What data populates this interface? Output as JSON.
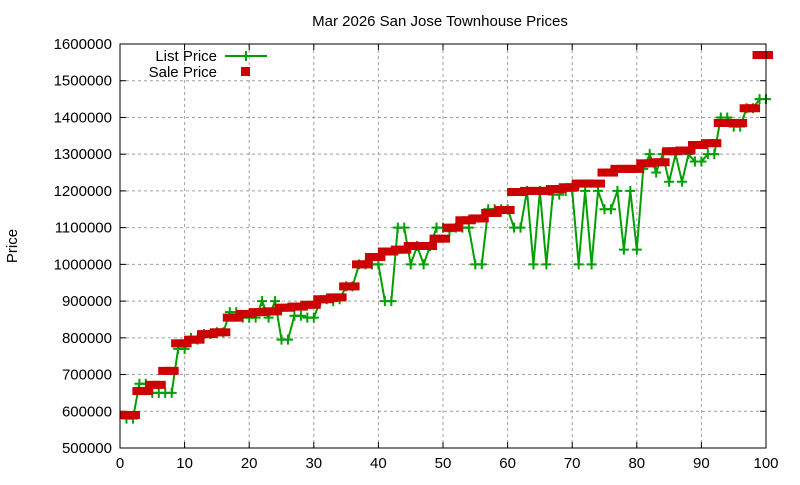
{
  "chart_data": {
    "type": "line",
    "title": "Mar 2026 San Jose Townhouse Prices",
    "xlabel": "",
    "ylabel": "Price",
    "xlim": [
      0,
      100
    ],
    "ylim": [
      500000,
      1600000
    ],
    "xticks": [
      "0",
      "10",
      "20",
      "30",
      "40",
      "50",
      "60",
      "70",
      "80",
      "90",
      "100"
    ],
    "yticks": [
      "500000",
      "600000",
      "700000",
      "800000",
      "900000",
      "1000000",
      "1100000",
      "1200000",
      "1300000",
      "1400000",
      "1500000",
      "1600000"
    ],
    "grid": true,
    "legend": "top-left",
    "x": [
      1,
      2,
      3,
      4,
      5,
      6,
      7,
      8,
      9,
      10,
      11,
      12,
      13,
      14,
      15,
      16,
      17,
      18,
      19,
      20,
      21,
      22,
      23,
      24,
      25,
      26,
      27,
      28,
      29,
      30,
      31,
      32,
      33,
      34,
      35,
      36,
      37,
      38,
      39,
      40,
      41,
      42,
      43,
      44,
      45,
      46,
      47,
      48,
      49,
      50,
      51,
      52,
      53,
      54,
      55,
      56,
      57,
      58,
      59,
      60,
      61,
      62,
      63,
      64,
      65,
      66,
      67,
      68,
      69,
      70,
      71,
      72,
      73,
      74,
      75,
      76,
      77,
      78,
      79,
      80,
      81,
      82,
      83,
      84,
      85,
      86,
      87,
      88,
      89,
      90,
      91,
      92,
      93,
      94,
      95,
      96,
      97,
      98,
      99,
      100
    ],
    "series": [
      {
        "name": "List Price",
        "color": "#00a000",
        "style": "linespoints",
        "values": [
          580000,
          580000,
          675000,
          675000,
          650000,
          650000,
          650000,
          650000,
          770000,
          770000,
          800000,
          795000,
          810000,
          810000,
          815000,
          815000,
          870000,
          870000,
          855000,
          855000,
          855000,
          900000,
          855000,
          900000,
          795000,
          795000,
          860000,
          860000,
          855000,
          855000,
          900000,
          905000,
          900000,
          905000,
          940000,
          940000,
          1000000,
          1000000,
          1000000,
          1000000,
          900000,
          900000,
          1100000,
          1100000,
          1000000,
          1050000,
          1000000,
          1050000,
          1100000,
          1100000,
          1090000,
          1100000,
          1100000,
          1100000,
          1000000,
          1000000,
          1150000,
          1150000,
          1150000,
          1150000,
          1100000,
          1100000,
          1200000,
          1000000,
          1200000,
          1000000,
          1190000,
          1190000,
          1200000,
          1200000,
          1000000,
          1200000,
          1000000,
          1200000,
          1150000,
          1150000,
          1200000,
          1040000,
          1200000,
          1040000,
          1260000,
          1300000,
          1250000,
          1300000,
          1225000,
          1300000,
          1225000,
          1300000,
          1280000,
          1280000,
          1300000,
          1300000,
          1400000,
          1400000,
          1375000,
          1375000,
          1425000,
          1425000,
          1450000,
          1450000
        ]
      },
      {
        "name": "Sale Price",
        "color": "#cc0000",
        "style": "points",
        "values": [
          590000,
          590000,
          655000,
          655000,
          672000,
          672000,
          710000,
          710000,
          785000,
          785000,
          795000,
          795000,
          810000,
          810000,
          815000,
          815000,
          855000,
          855000,
          865000,
          865000,
          870000,
          870000,
          872000,
          872000,
          882000,
          882000,
          885000,
          885000,
          890000,
          890000,
          905000,
          905000,
          910000,
          910000,
          940000,
          940000,
          1000000,
          1000000,
          1020000,
          1020000,
          1035000,
          1035000,
          1040000,
          1040000,
          1050000,
          1050000,
          1050000,
          1050000,
          1070000,
          1070000,
          1100000,
          1100000,
          1120000,
          1120000,
          1125000,
          1125000,
          1140000,
          1140000,
          1148000,
          1148000,
          1197000,
          1197000,
          1200000,
          1200000,
          1200000,
          1200000,
          1205000,
          1205000,
          1210000,
          1210000,
          1220000,
          1220000,
          1220000,
          1220000,
          1250000,
          1250000,
          1260000,
          1260000,
          1260000,
          1260000,
          1275000,
          1275000,
          1278000,
          1278000,
          1308000,
          1308000,
          1310000,
          1310000,
          1325000,
          1325000,
          1330000,
          1330000,
          1385000,
          1385000,
          1385000,
          1385000,
          1425000,
          1425000,
          1570000,
          1570000
        ]
      }
    ]
  }
}
